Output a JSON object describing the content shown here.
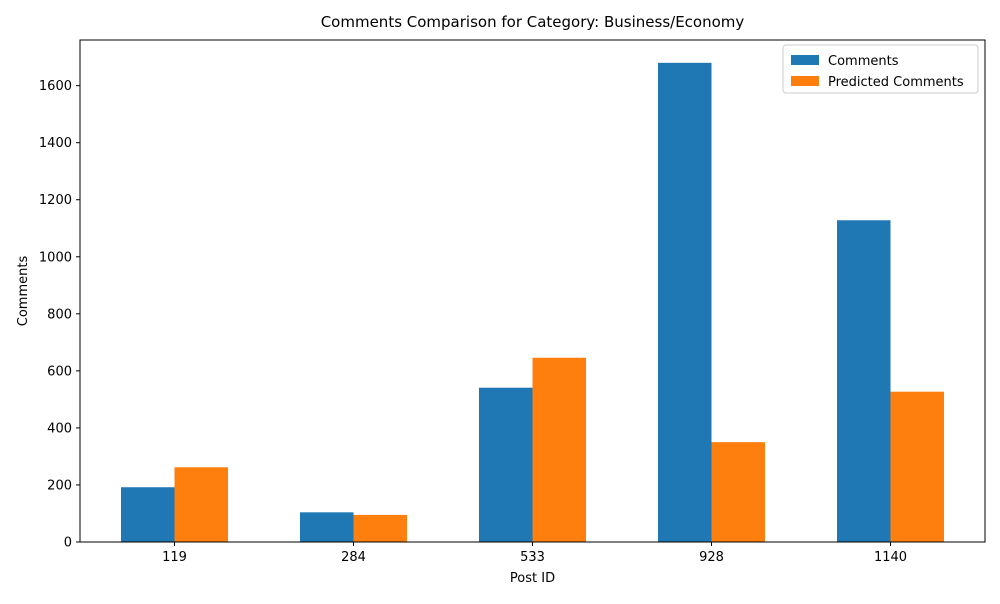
{
  "chart_data": {
    "type": "bar",
    "title": "Comments Comparison for Category: Business/Economy",
    "xlabel": "Post ID",
    "ylabel": "Comments",
    "categories": [
      "119",
      "284",
      "533",
      "928",
      "1140"
    ],
    "series": [
      {
        "name": "Comments",
        "values": [
          192,
          104,
          541,
          1680,
          1128
        ],
        "color": "#1f77b4"
      },
      {
        "name": "Predicted Comments",
        "values": [
          262,
          95,
          646,
          350,
          527
        ],
        "color": "#ff7f0e"
      }
    ],
    "ylim": [
      0,
      1760
    ],
    "yticks": [
      0,
      200,
      400,
      600,
      800,
      1000,
      1200,
      1400,
      1600
    ],
    "grid": false,
    "legend": "top-right"
  }
}
